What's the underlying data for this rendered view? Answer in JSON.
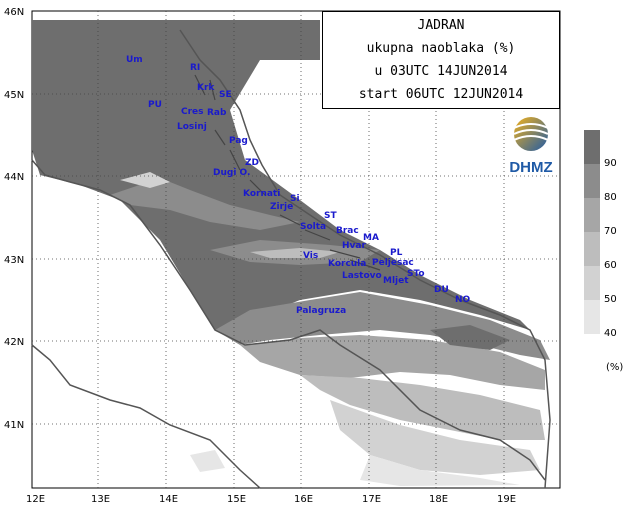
{
  "title": {
    "line1": "JADRAN",
    "line2": "ukupna naoblaka (%)",
    "line3": "u 03UTC  14JUN2014",
    "line4": "start 06UTC  12JUN2014"
  },
  "logo_text": "DHMZ",
  "legend": {
    "levels": [
      "90",
      "80",
      "70",
      "60",
      "50",
      "40"
    ],
    "unit": "(%)",
    "colors": [
      "#6e6e6e",
      "#8c8c8c",
      "#a6a6a6",
      "#bdbdbd",
      "#d2d2d2",
      "#e6e6e6"
    ]
  },
  "axes": {
    "lon_labels": [
      "12E",
      "13E",
      "14E",
      "15E",
      "16E",
      "17E",
      "18E",
      "19E"
    ],
    "lat_labels": [
      "46N",
      "45N",
      "44N",
      "43N",
      "42N",
      "41N"
    ]
  },
  "places": [
    "Um",
    "RI",
    "Krk",
    "SE",
    "PU",
    "Cres",
    "Rab",
    "Losinj",
    "Pag",
    "ZD",
    "Dugi O.",
    "Kornati",
    "Si",
    "Zirje",
    "ST",
    "Solta",
    "Brac",
    "MA",
    "Hvar",
    "PL",
    "Vis",
    "Korcula",
    "Peljesac",
    "Lastovo",
    "Mljet",
    "STo",
    "DU",
    "NO",
    "Palagruza"
  ]
}
